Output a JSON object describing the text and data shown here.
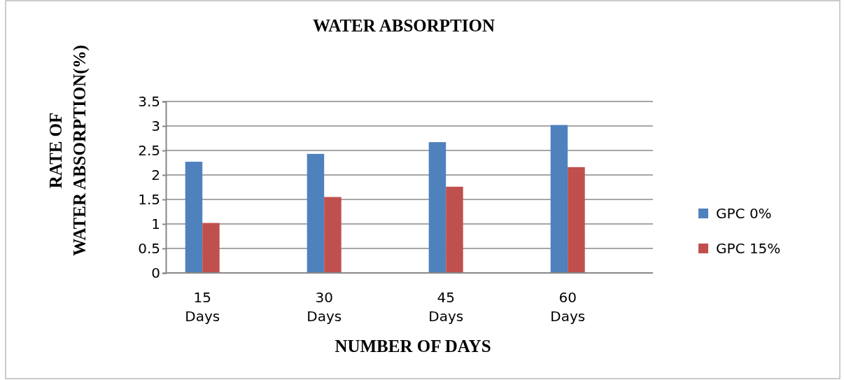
{
  "chart_data": {
    "type": "bar",
    "title": "WATER ABSORPTION",
    "xlabel": "NUMBER OF DAYS",
    "ylabel": "RATE OF WATER ABSORPTION(%)",
    "categories": [
      "15 Days",
      "30 Days",
      "45 Days",
      "60 Days"
    ],
    "series": [
      {
        "name": "GPC 0%",
        "color": "#4f81bd",
        "values": [
          2.27,
          2.43,
          2.67,
          3.02
        ]
      },
      {
        "name": "GPC 15%",
        "color": "#c0504d",
        "values": [
          1.02,
          1.55,
          1.76,
          2.16
        ]
      }
    ],
    "ylim": [
      0,
      3.5
    ],
    "yticks": [
      0,
      0.5,
      1,
      1.5,
      2,
      2.5,
      3,
      3.5
    ],
    "grid": "y",
    "legend": "right"
  }
}
